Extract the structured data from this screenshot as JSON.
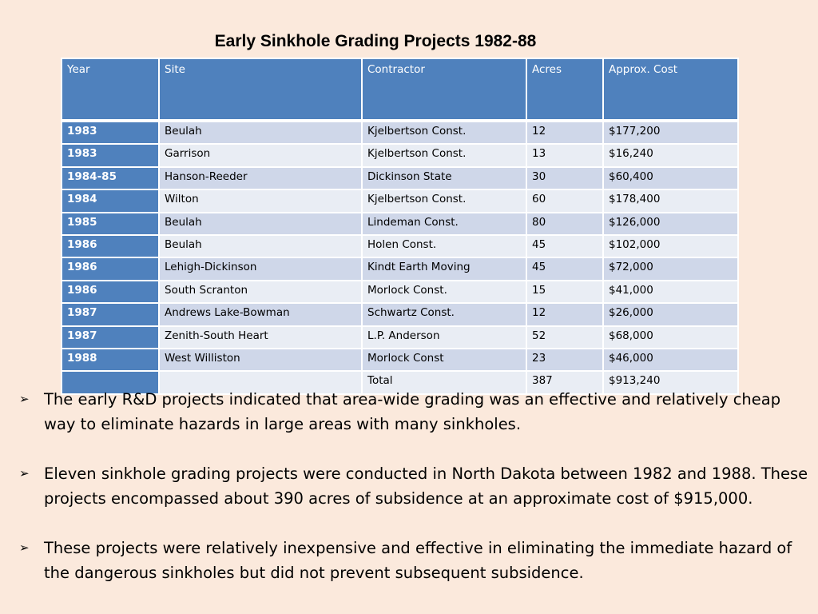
{
  "slide": {
    "title": "Early Sinkhole Grading Projects 1982-88"
  },
  "table": {
    "headers": [
      "Year",
      "Site",
      "Contractor",
      "Acres",
      "Approx. Cost"
    ],
    "rows": [
      [
        "1983",
        "Beulah",
        "Kjelbertson Const.",
        "12",
        "$177,200"
      ],
      [
        "1983",
        "Garrison",
        "Kjelbertson Const.",
        "13",
        "$16,240"
      ],
      [
        "1984-85",
        "Hanson-Reeder",
        "Dickinson State",
        "30",
        "$60,400"
      ],
      [
        "1984",
        "Wilton",
        "Kjelbertson Const.",
        "60",
        "$178,400"
      ],
      [
        "1985",
        "Beulah",
        "Lindeman Const.",
        "80",
        "$126,000"
      ],
      [
        "1986",
        "Beulah",
        "Holen Const.",
        "45",
        "$102,000"
      ],
      [
        "1986",
        "Lehigh-Dickinson",
        "Kindt Earth Moving",
        "45",
        "$72,000"
      ],
      [
        "1986",
        "South Scranton",
        "Morlock Const.",
        "15",
        "$41,000"
      ],
      [
        "1987",
        "Andrews Lake-Bowman",
        "Schwartz Const.",
        "12",
        "$26,000"
      ],
      [
        "1987",
        "Zenith-South Heart",
        "L.P. Anderson",
        "52",
        "$68,000"
      ],
      [
        "1988",
        "West Williston",
        "Morlock Const",
        "23",
        "$46,000"
      ],
      [
        "",
        "",
        "Total",
        "387",
        "$913,240"
      ]
    ]
  },
  "bullets": {
    "marker": "➢",
    "items": [
      "The early R&D projects indicated that area-wide grading was an effective and relatively cheap way to eliminate hazards in large areas with many sinkholes.",
      "Eleven sinkhole grading projects were conducted in North Dakota between 1982 and 1988. These projects encompassed about 390 acres of subsidence at an approximate cost of $915,000.",
      "These projects were relatively inexpensive and effective in eliminating the immediate hazard of the dangerous sinkholes but did not prevent subsequent subsidence."
    ]
  },
  "colors": {
    "background": "#fbe9dc",
    "header": "#4f81bd",
    "row_dark": "#cfd7e9",
    "row_light": "#e9edf4"
  }
}
